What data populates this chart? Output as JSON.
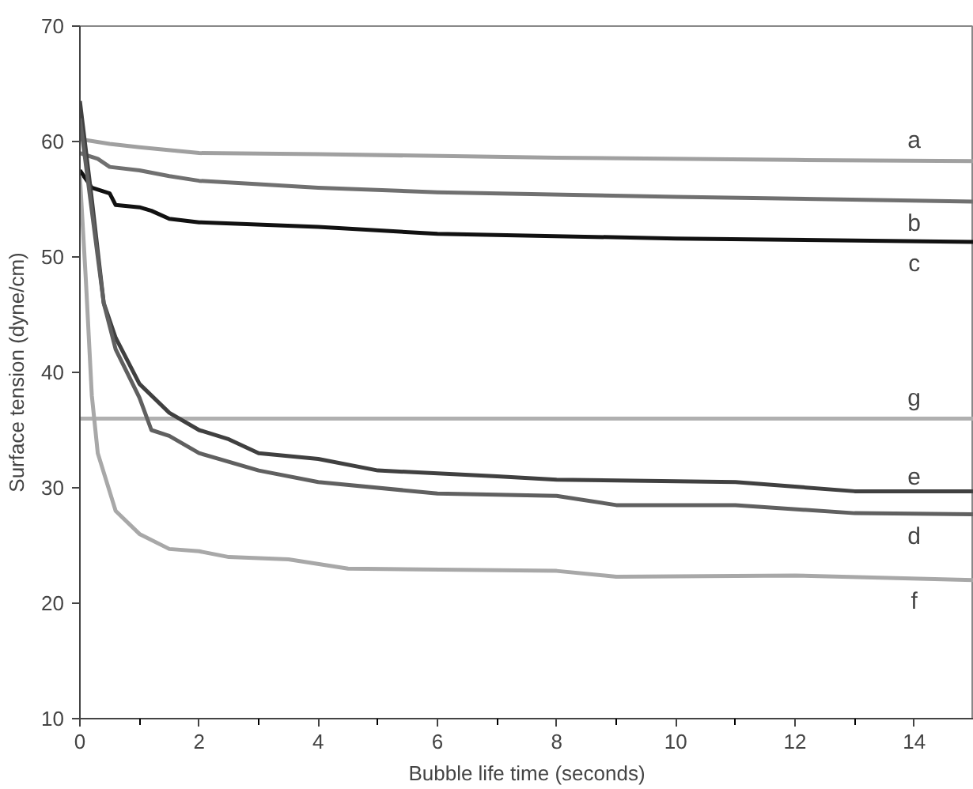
{
  "chart_data": {
    "type": "line",
    "xlabel": "Bubble life time (seconds)",
    "ylabel": "Surface tension (dyne/cm)",
    "xlim": [
      0,
      15
    ],
    "ylim": [
      10,
      70
    ],
    "xticks": [
      0,
      2,
      4,
      6,
      8,
      10,
      12,
      14
    ],
    "yticks": [
      10,
      20,
      30,
      40,
      50,
      60,
      70
    ],
    "grid": false,
    "legend": false,
    "marker": "none",
    "line_style": "solid",
    "series": [
      {
        "name": "a",
        "color": "#a0a0a0",
        "x": [
          0,
          0.5,
          1,
          2,
          4,
          8,
          12,
          15
        ],
        "values": [
          60.2,
          59.8,
          59.5,
          59.0,
          58.9,
          58.6,
          58.4,
          58.3
        ]
      },
      {
        "name": "b",
        "color": "#707070",
        "x": [
          0,
          0.3,
          0.5,
          1,
          1.5,
          2,
          3,
          4,
          6,
          10,
          15
        ],
        "values": [
          59,
          58.5,
          57.8,
          57.5,
          57,
          56.6,
          56.3,
          56.0,
          55.6,
          55.2,
          54.8
        ]
      },
      {
        "name": "c",
        "color": "#111111",
        "x": [
          0,
          0.2,
          0.5,
          0.6,
          1,
          1.2,
          1.5,
          2,
          4,
          6,
          10,
          15
        ],
        "values": [
          57.5,
          56,
          55.5,
          54.5,
          54.3,
          54,
          53.3,
          53,
          52.6,
          52,
          51.6,
          51.3
        ]
      },
      {
        "name": "g",
        "color": "#b0b0b0",
        "x": [
          0,
          15
        ],
        "values": [
          36,
          36
        ]
      },
      {
        "name": "e",
        "color": "#404040",
        "x": [
          0,
          0.2,
          0.4,
          0.6,
          1,
          1.5,
          2,
          2.5,
          3,
          4,
          5,
          7,
          8,
          11,
          13,
          15
        ],
        "values": [
          63.5,
          55,
          46,
          43,
          39,
          36.5,
          35,
          34.2,
          33,
          32.5,
          31.5,
          31,
          30.7,
          30.5,
          29.7,
          29.7
        ]
      },
      {
        "name": "d",
        "color": "#606060",
        "x": [
          0,
          0.2,
          0.4,
          0.6,
          1,
          1.2,
          1.5,
          2,
          3,
          4,
          6,
          8,
          9,
          11,
          13,
          15
        ],
        "values": [
          62,
          54,
          46,
          42,
          37.8,
          35,
          34.5,
          33,
          31.5,
          30.5,
          29.5,
          29.3,
          28.5,
          28.5,
          27.8,
          27.7
        ]
      },
      {
        "name": "f",
        "color": "#a8a8a8",
        "x": [
          0,
          0.1,
          0.2,
          0.3,
          0.6,
          1,
          1.5,
          2,
          2.5,
          3.5,
          4.5,
          8,
          9,
          12,
          15
        ],
        "values": [
          57,
          48,
          38,
          33,
          28,
          26,
          24.7,
          24.5,
          24,
          23.8,
          23,
          22.8,
          22.3,
          22.4,
          22.0
        ]
      }
    ]
  }
}
